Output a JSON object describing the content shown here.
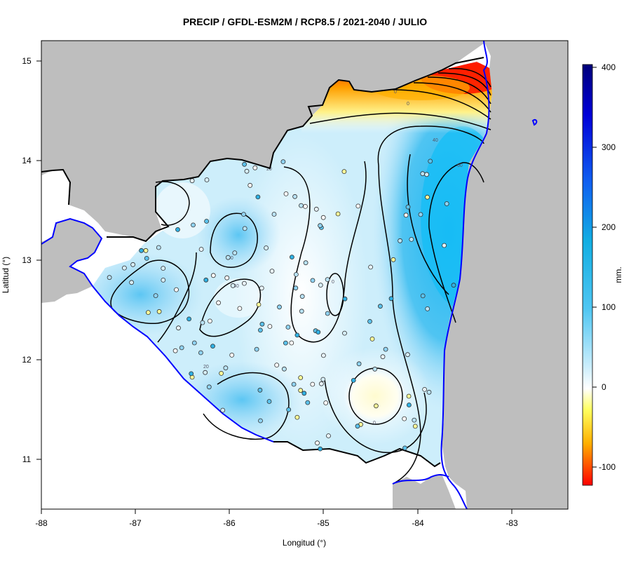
{
  "title": "PRECIP / GFDL-ESM2M / RCP8.5 / 2021-2040 / JULIO",
  "xlabel": "Longitud (°)",
  "ylabel": "Latitud (°)",
  "x_ticks": [
    "-88",
    "-87",
    "-86",
    "-85",
    "-84",
    "-83"
  ],
  "y_ticks": [
    "15",
    "14",
    "13",
    "12",
    "11"
  ],
  "colorbar": {
    "label": "mm.",
    "ticks": [
      "400",
      "300",
      "200",
      "100",
      "0",
      "-100"
    ],
    "range": [
      -122,
      402
    ]
  },
  "contour_labels": [
    "0",
    "0",
    "20",
    "40",
    "60",
    "40",
    "40",
    "0",
    "0",
    "20"
  ],
  "colors": {
    "land_mask": "#bebebe",
    "coastline": "#0000ff",
    "border": "#000000",
    "zero_anomaly": "#ffffff",
    "positive_anomaly": "#1ebfff",
    "negative_anomaly": "#ff0000"
  },
  "chart_data": {
    "type": "heatmap",
    "variable": "PRECIP",
    "model": "GFDL-ESM2M",
    "scenario": "RCP8.5",
    "period": "2021-2040",
    "month": "JULIO",
    "xlim": [
      -88,
      -82.4
    ],
    "ylim": [
      10.5,
      15.2
    ],
    "contour_levels": [
      0,
      20,
      40,
      60
    ],
    "stations_count": 150
  }
}
